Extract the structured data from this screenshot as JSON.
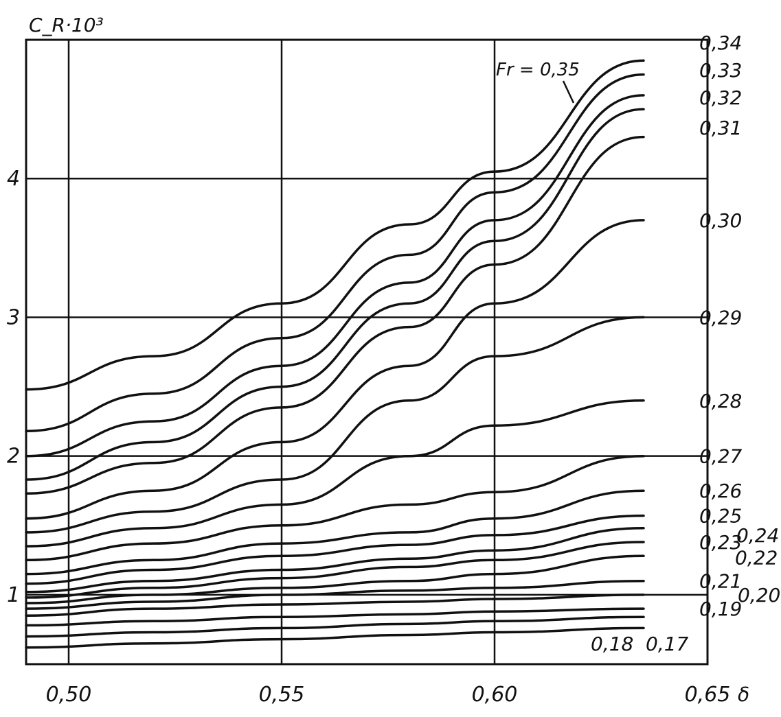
{
  "chart_data": {
    "type": "line",
    "ylabel": "C_R·10³",
    "xlabel": "δ",
    "xlim": [
      0.49,
      0.65
    ],
    "ylim": [
      0.5,
      5.0
    ],
    "x_ticks": [
      {
        "value": 0.5,
        "label": "0,50"
      },
      {
        "value": 0.55,
        "label": "0,55"
      },
      {
        "value": 0.6,
        "label": "0,60"
      },
      {
        "value": 0.65,
        "label": "0,65"
      }
    ],
    "y_ticks": [
      {
        "value": 1,
        "label": "1"
      },
      {
        "value": 2,
        "label": "2"
      },
      {
        "value": 3,
        "label": "3"
      },
      {
        "value": 4,
        "label": "4"
      }
    ],
    "grid": true,
    "annotation": "Fr = 0,35",
    "x": [
      0.49,
      0.52,
      0.55,
      0.58,
      0.6,
      0.635
    ],
    "series": [
      {
        "name": "0,35",
        "values": [
          2.48,
          2.72,
          3.1,
          3.67,
          4.05,
          4.85
        ]
      },
      {
        "name": "0,34",
        "values": [
          2.18,
          2.45,
          2.85,
          3.45,
          3.9,
          4.75
        ]
      },
      {
        "name": "0,33",
        "values": [
          2.0,
          2.25,
          2.65,
          3.25,
          3.7,
          4.6
        ]
      },
      {
        "name": "0,32",
        "values": [
          1.83,
          2.1,
          2.5,
          3.1,
          3.55,
          4.5
        ]
      },
      {
        "name": "0,31",
        "values": [
          1.73,
          1.95,
          2.35,
          2.93,
          3.38,
          4.3
        ]
      },
      {
        "name": "0,30",
        "values": [
          1.55,
          1.75,
          2.1,
          2.65,
          3.1,
          3.7
        ]
      },
      {
        "name": "0,29",
        "values": [
          1.45,
          1.6,
          1.83,
          2.4,
          2.72,
          3.0
        ]
      },
      {
        "name": "0,28",
        "values": [
          1.35,
          1.48,
          1.65,
          2.0,
          2.22,
          2.4
        ]
      },
      {
        "name": "0,27",
        "values": [
          1.25,
          1.37,
          1.5,
          1.65,
          1.74,
          2.0
        ]
      },
      {
        "name": "0,26",
        "values": [
          1.15,
          1.25,
          1.37,
          1.45,
          1.55,
          1.75
        ]
      },
      {
        "name": "0,25",
        "values": [
          1.08,
          1.18,
          1.28,
          1.36,
          1.43,
          1.57
        ]
      },
      {
        "name": "0,24",
        "values": [
          1.02,
          1.1,
          1.18,
          1.26,
          1.32,
          1.48
        ]
      },
      {
        "name": "0,23",
        "values": [
          0.98,
          1.05,
          1.12,
          1.2,
          1.25,
          1.38
        ]
      },
      {
        "name": "0,22",
        "values": [
          0.94,
          1.0,
          1.05,
          1.1,
          1.15,
          1.28
        ]
      },
      {
        "name": "0,21",
        "values": [
          0.9,
          0.95,
          1.0,
          1.03,
          1.05,
          1.1
        ]
      },
      {
        "name": "0,20",
        "values": [
          0.85,
          0.9,
          0.93,
          0.95,
          0.97,
          1.0
        ]
      },
      {
        "name": "0,19",
        "values": [
          0.78,
          0.81,
          0.84,
          0.86,
          0.88,
          0.9
        ]
      },
      {
        "name": "0,18",
        "values": [
          0.7,
          0.73,
          0.76,
          0.79,
          0.81,
          0.84
        ]
      },
      {
        "name": "0,17",
        "values": [
          0.62,
          0.65,
          0.68,
          0.71,
          0.73,
          0.76
        ]
      }
    ]
  }
}
